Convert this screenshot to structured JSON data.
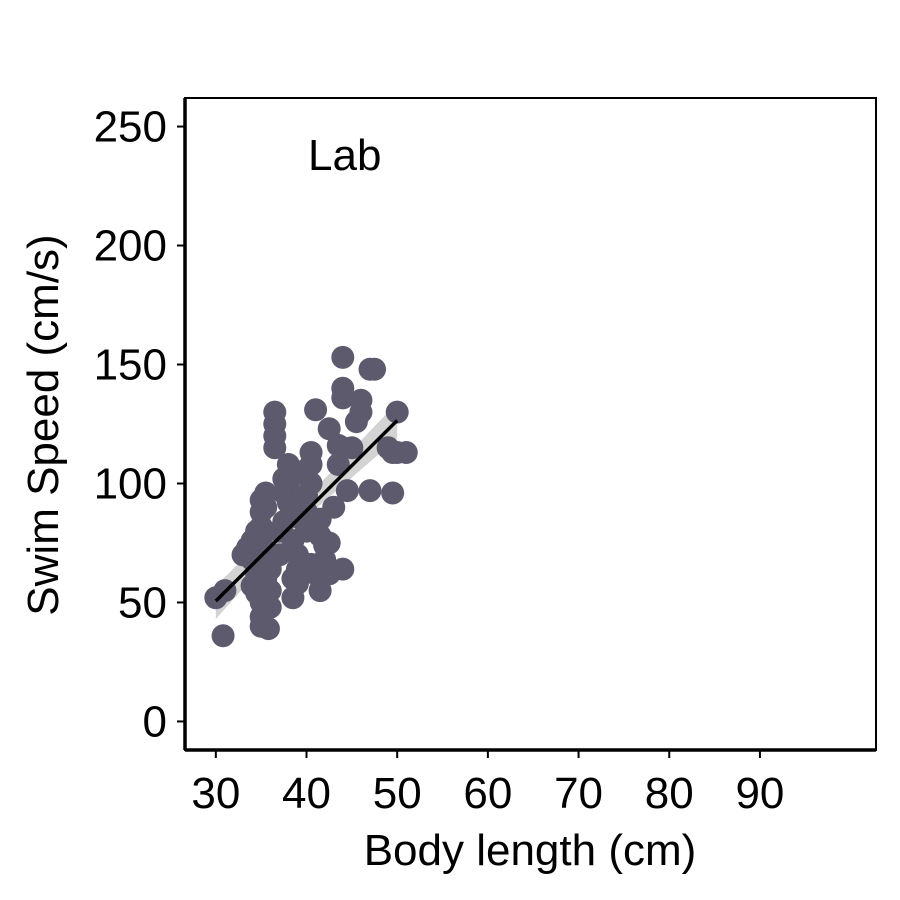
{
  "chart_data": {
    "type": "scatter",
    "panel_label": "Lab",
    "xlabel": "Body length (cm)",
    "ylabel": "Swim Speed (cm/s)",
    "xlim": [
      26.6,
      102.8
    ],
    "ylim": [
      -12,
      262
    ],
    "x_ticks": [
      30,
      40,
      50,
      60,
      70,
      80,
      90
    ],
    "y_ticks": [
      0,
      50,
      100,
      150,
      200,
      250
    ],
    "point_color": "#5d5a6e",
    "line_color": "#000000",
    "ribbon_color": "#c8c8c8",
    "grid": false,
    "points": [
      [
        30,
        52
      ],
      [
        31,
        55
      ],
      [
        30.8,
        36
      ],
      [
        33,
        70
      ],
      [
        33.5,
        73
      ],
      [
        34,
        68
      ],
      [
        34,
        76
      ],
      [
        34.5,
        80
      ],
      [
        34.5,
        62
      ],
      [
        34,
        57
      ],
      [
        34.5,
        54
      ],
      [
        35,
        93
      ],
      [
        35,
        88
      ],
      [
        35,
        82
      ],
      [
        35,
        75
      ],
      [
        35,
        66
      ],
      [
        35,
        58
      ],
      [
        35,
        50
      ],
      [
        35,
        44
      ],
      [
        35,
        40
      ],
      [
        35.5,
        96
      ],
      [
        35.5,
        90
      ],
      [
        35.5,
        72
      ],
      [
        35.5,
        60
      ],
      [
        35.8,
        39
      ],
      [
        36,
        48
      ],
      [
        36,
        55
      ],
      [
        36,
        64
      ],
      [
        36.5,
        130
      ],
      [
        36.5,
        125
      ],
      [
        36.5,
        120
      ],
      [
        36.5,
        115
      ],
      [
        37,
        80
      ],
      [
        37,
        70
      ],
      [
        37.5,
        102
      ],
      [
        37.5,
        96
      ],
      [
        37.5,
        84
      ],
      [
        38,
        108
      ],
      [
        38,
        100
      ],
      [
        38,
        92
      ],
      [
        38.5,
        76
      ],
      [
        38.5,
        60
      ],
      [
        38.5,
        52
      ],
      [
        39,
        70
      ],
      [
        39,
        64
      ],
      [
        39,
        58
      ],
      [
        39.5,
        105
      ],
      [
        39.5,
        85
      ],
      [
        40,
        95
      ],
      [
        40,
        88
      ],
      [
        40,
        80
      ],
      [
        40.5,
        113
      ],
      [
        40.5,
        108
      ],
      [
        40.5,
        100
      ],
      [
        40.5,
        66
      ],
      [
        41,
        131
      ],
      [
        41,
        62
      ],
      [
        41.5,
        55
      ],
      [
        41.5,
        60
      ],
      [
        41.5,
        85
      ],
      [
        41.5,
        78
      ],
      [
        42,
        74
      ],
      [
        42,
        68
      ],
      [
        42.5,
        75
      ],
      [
        42.5,
        62
      ],
      [
        42.5,
        123
      ],
      [
        43,
        90
      ],
      [
        43.5,
        116
      ],
      [
        43.5,
        108
      ],
      [
        44,
        64
      ],
      [
        44,
        115
      ],
      [
        44,
        136
      ],
      [
        44,
        140
      ],
      [
        44,
        153
      ],
      [
        44.5,
        97
      ],
      [
        45,
        115
      ],
      [
        45.5,
        126
      ],
      [
        46,
        130
      ],
      [
        46,
        135
      ],
      [
        47,
        148
      ],
      [
        47,
        97
      ],
      [
        47.5,
        148
      ],
      [
        49,
        115
      ],
      [
        49.5,
        96
      ],
      [
        49.5,
        113
      ],
      [
        50,
        113
      ],
      [
        50,
        130
      ],
      [
        51,
        113
      ]
    ],
    "fit": {
      "x": [
        30,
        50
      ],
      "y": [
        50.6,
        126.5
      ]
    },
    "ribbon": {
      "x": [
        30,
        40,
        50
      ],
      "upper": [
        57,
        94,
        134
      ],
      "lower": [
        43,
        86,
        119
      ]
    }
  }
}
